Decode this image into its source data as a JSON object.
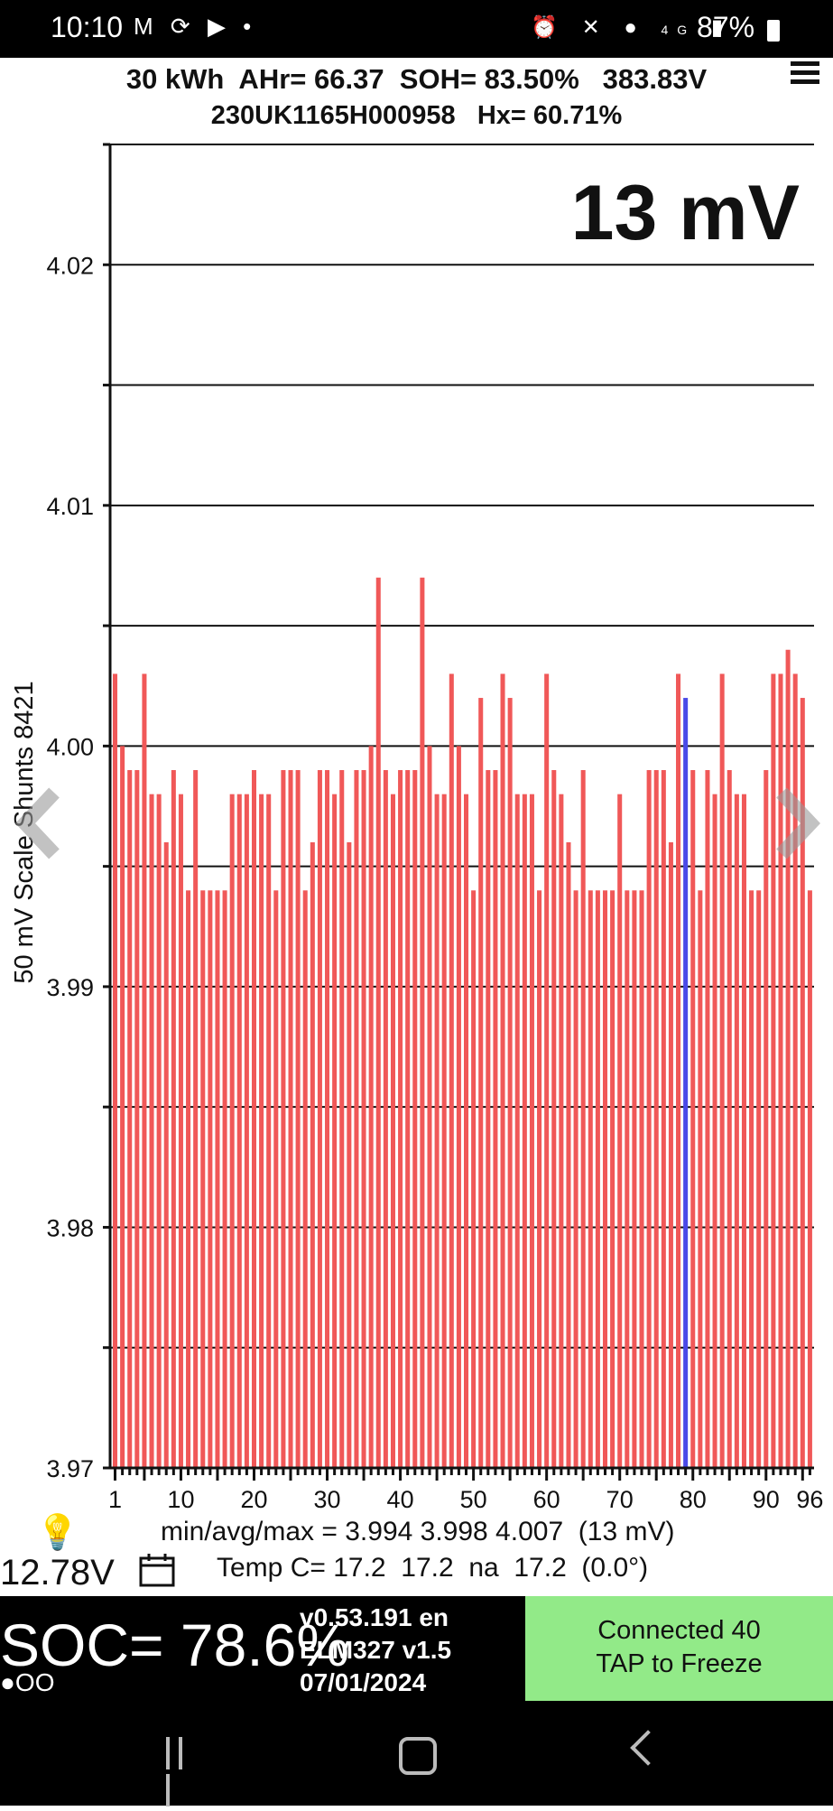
{
  "status_bar": {
    "time": "10:10",
    "left_icons": [
      "gmail-icon",
      "sync-icon",
      "youtube-icon",
      "dot-icon"
    ],
    "right_icons": [
      "alarm-icon",
      "mute-icon",
      "location-icon",
      "4g-icon",
      "signal-icon"
    ],
    "battery": "87%"
  },
  "header": {
    "line1": "30 kWh  AHr= 66.37  SOH= 83.50%   383.83V",
    "line2": "230UK1165H000958   Hx= 60.71%"
  },
  "spread_label": "13 mV",
  "footer": {
    "stats": "min/avg/max = 3.994 3.998 4.007  (13 mV)",
    "battery_voltage": "12.78V",
    "temp": "Temp C= 17.2  17.2  na  17.2  (0.0°)"
  },
  "bottom": {
    "soc": "SOC= 78.6%",
    "dots": "●OO",
    "version_line1": "v0.53.191 en",
    "version_line2": "ELM327 v1.5",
    "version_line3": "07/01/2024",
    "connect_line1": "Connected 40",
    "connect_line2": "TAP to Freeze"
  },
  "colors": {
    "bar": "#f05858",
    "highlight": "#4a4ae8",
    "connect_bg": "#92ea88"
  },
  "chart_data": {
    "type": "bar",
    "ylabel": "50 mV Scale Shunts 8421",
    "ylim": [
      3.97,
      4.025
    ],
    "yticks": [
      "3.97",
      "3.98",
      "3.99",
      "4.00",
      "4.01",
      "4.02"
    ],
    "xticks": [
      "1",
      "10",
      "20",
      "30",
      "40",
      "50",
      "60",
      "70",
      "80",
      "90",
      "96"
    ],
    "highlight_cell": 79,
    "x": [
      1,
      2,
      3,
      4,
      5,
      6,
      7,
      8,
      9,
      10,
      11,
      12,
      13,
      14,
      15,
      16,
      17,
      18,
      19,
      20,
      21,
      22,
      23,
      24,
      25,
      26,
      27,
      28,
      29,
      30,
      31,
      32,
      33,
      34,
      35,
      36,
      37,
      38,
      39,
      40,
      41,
      42,
      43,
      44,
      45,
      46,
      47,
      48,
      49,
      50,
      51,
      52,
      53,
      54,
      55,
      56,
      57,
      58,
      59,
      60,
      61,
      62,
      63,
      64,
      65,
      66,
      67,
      68,
      69,
      70,
      71,
      72,
      73,
      74,
      75,
      76,
      77,
      78,
      79,
      80,
      81,
      82,
      83,
      84,
      85,
      86,
      87,
      88,
      89,
      90,
      91,
      92,
      93,
      94,
      95,
      96
    ],
    "values": [
      4.003,
      4.0,
      3.999,
      3.999,
      4.003,
      3.998,
      3.998,
      3.996,
      3.999,
      3.998,
      3.994,
      3.999,
      3.994,
      3.994,
      3.994,
      3.994,
      3.998,
      3.998,
      3.998,
      3.999,
      3.998,
      3.998,
      3.994,
      3.999,
      3.999,
      3.999,
      3.994,
      3.996,
      3.999,
      3.999,
      3.998,
      3.999,
      3.996,
      3.999,
      3.999,
      4.0,
      4.007,
      3.999,
      3.998,
      3.999,
      3.999,
      3.999,
      4.007,
      4.0,
      3.998,
      3.998,
      4.003,
      4.0,
      3.998,
      3.994,
      4.002,
      3.999,
      3.999,
      4.003,
      4.002,
      3.998,
      3.998,
      3.998,
      3.994,
      4.003,
      3.999,
      3.998,
      3.996,
      3.994,
      3.999,
      3.994,
      3.994,
      3.994,
      3.994,
      3.998,
      3.994,
      3.994,
      3.994,
      3.999,
      3.999,
      3.999,
      3.996,
      4.003,
      4.002,
      3.999,
      3.994,
      3.999,
      3.998,
      4.003,
      3.999,
      3.998,
      3.998,
      3.994,
      3.994,
      3.999,
      4.003,
      4.003,
      4.004,
      4.003,
      4.002,
      3.994
    ]
  }
}
